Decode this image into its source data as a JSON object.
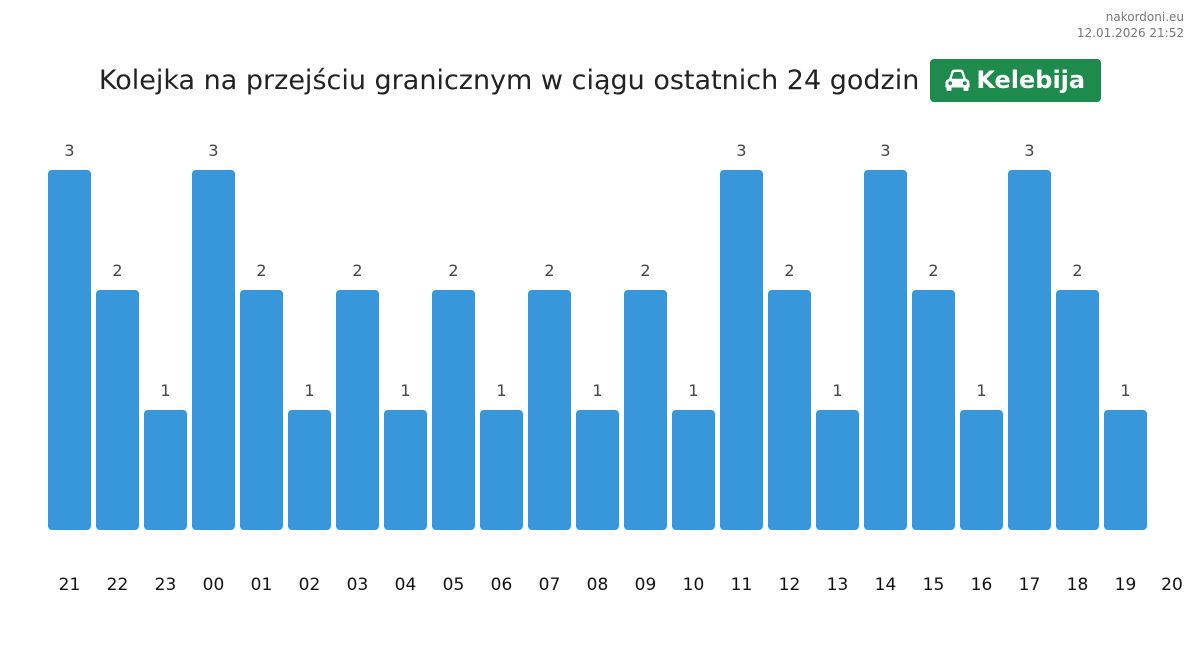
{
  "header": {
    "site": "nakordoni.eu",
    "timestamp": "12.01.2026 21:52",
    "title": "Kolejka na przejściu granicznym w ciągu ostatnich 24 godzin",
    "badge_label": "Kelebija",
    "badge_icon": "car-icon",
    "badge_color": "#1e8a4c"
  },
  "chart_data": {
    "type": "bar",
    "categories": [
      "21",
      "22",
      "23",
      "00",
      "01",
      "02",
      "03",
      "04",
      "05",
      "06",
      "07",
      "08",
      "09",
      "10",
      "11",
      "12",
      "13",
      "14",
      "15",
      "16",
      "17",
      "18",
      "19"
    ],
    "x_ticks": [
      "21",
      "22",
      "23",
      "00",
      "01",
      "02",
      "03",
      "04",
      "05",
      "06",
      "07",
      "08",
      "09",
      "10",
      "11",
      "12",
      "13",
      "14",
      "15",
      "16",
      "17",
      "18",
      "19",
      "20"
    ],
    "values": [
      3,
      2,
      1,
      3,
      2,
      1,
      2,
      1,
      2,
      1,
      2,
      1,
      2,
      1,
      3,
      2,
      1,
      3,
      2,
      1,
      3,
      2,
      1
    ],
    "ylim": [
      0,
      3
    ],
    "bar_color": "#3897da",
    "grid": false,
    "data_labels": true
  }
}
